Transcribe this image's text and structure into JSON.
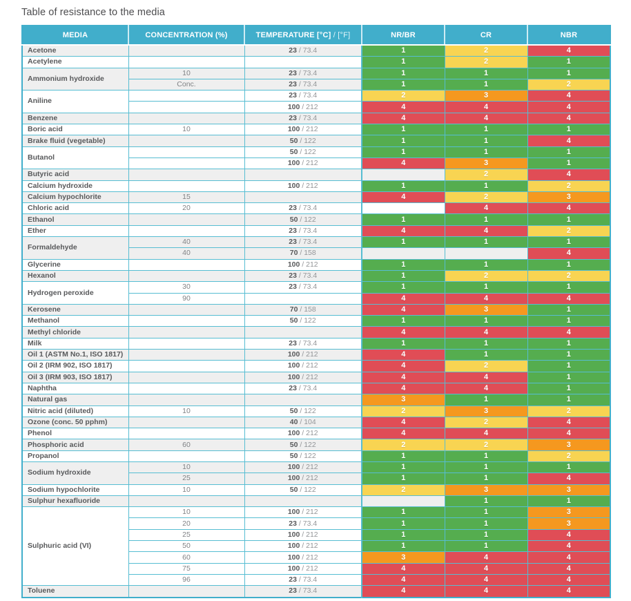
{
  "title": "Table of resistance to the media",
  "colors": {
    "header": "#41aecb",
    "border": "#56bdd2",
    "stripe": "#efefef",
    "ratings": {
      "1": "#55ad4f",
      "2": "#f8d452",
      "3": "#f5981f",
      "4": "#e04d56"
    }
  },
  "table": {
    "headers": {
      "media": "MEDIA",
      "concentration": "CONCENTRATION (%)",
      "temperature_bold": "TEMPERATURE [°C]",
      "temperature_light": "/ [°F]",
      "nr_br": "NR/BR",
      "cr": "CR",
      "nbr": "NBR"
    },
    "groups": [
      {
        "media": "Acetone",
        "rows": [
          {
            "concentration": "",
            "temp_c": "23",
            "temp_f": "73.4",
            "ratings": [
              1,
              2,
              4
            ]
          }
        ]
      },
      {
        "media": "Acetylene",
        "rows": [
          {
            "concentration": "",
            "temp_c": "",
            "temp_f": "",
            "ratings": [
              1,
              2,
              1
            ]
          }
        ]
      },
      {
        "media": "Ammonium hydroxide",
        "rows": [
          {
            "concentration": "10",
            "temp_c": "23",
            "temp_f": "73.4",
            "ratings": [
              1,
              1,
              1
            ]
          },
          {
            "concentration": "Conc.",
            "temp_c": "23",
            "temp_f": "73.4",
            "ratings": [
              1,
              1,
              2
            ]
          }
        ]
      },
      {
        "media": "Aniline",
        "rows": [
          {
            "concentration": "",
            "temp_c": "23",
            "temp_f": "73.4",
            "ratings": [
              2,
              3,
              4
            ]
          },
          {
            "concentration": "",
            "temp_c": "100",
            "temp_f": "212",
            "ratings": [
              4,
              4,
              4
            ]
          }
        ]
      },
      {
        "media": "Benzene",
        "rows": [
          {
            "concentration": "",
            "temp_c": "23",
            "temp_f": "73.4",
            "ratings": [
              4,
              4,
              4
            ]
          }
        ]
      },
      {
        "media": "Boric acid",
        "rows": [
          {
            "concentration": "10",
            "temp_c": "100",
            "temp_f": "212",
            "ratings": [
              1,
              1,
              1
            ]
          }
        ]
      },
      {
        "media": "Brake fluid (vegetable)",
        "rows": [
          {
            "concentration": "",
            "temp_c": "50",
            "temp_f": "122",
            "ratings": [
              1,
              1,
              4
            ]
          }
        ]
      },
      {
        "media": "Butanol",
        "rows": [
          {
            "concentration": "",
            "temp_c": "50",
            "temp_f": "122",
            "ratings": [
              1,
              1,
              1
            ]
          },
          {
            "concentration": "",
            "temp_c": "100",
            "temp_f": "212",
            "ratings": [
              4,
              3,
              1
            ]
          }
        ]
      },
      {
        "media": "Butyric acid",
        "rows": [
          {
            "concentration": "",
            "temp_c": "",
            "temp_f": "",
            "ratings": [
              null,
              2,
              4
            ]
          }
        ]
      },
      {
        "media": "Calcium hydroxide",
        "rows": [
          {
            "concentration": "",
            "temp_c": "100",
            "temp_f": "212",
            "ratings": [
              1,
              1,
              2
            ]
          }
        ]
      },
      {
        "media": "Calcium hypochlorite",
        "rows": [
          {
            "concentration": "15",
            "temp_c": "",
            "temp_f": "",
            "ratings": [
              4,
              2,
              3
            ]
          }
        ]
      },
      {
        "media": "Chloric acid",
        "rows": [
          {
            "concentration": "20",
            "temp_c": "23",
            "temp_f": "73.4",
            "ratings": [
              null,
              4,
              4
            ]
          }
        ]
      },
      {
        "media": "Ethanol",
        "rows": [
          {
            "concentration": "",
            "temp_c": "50",
            "temp_f": "122",
            "ratings": [
              1,
              1,
              1
            ]
          }
        ]
      },
      {
        "media": "Ether",
        "rows": [
          {
            "concentration": "",
            "temp_c": "23",
            "temp_f": "73.4",
            "ratings": [
              4,
              4,
              2
            ]
          }
        ]
      },
      {
        "media": "Formaldehyde",
        "rows": [
          {
            "concentration": "40",
            "temp_c": "23",
            "temp_f": "73.4",
            "ratings": [
              1,
              1,
              1
            ]
          },
          {
            "concentration": "40",
            "temp_c": "70",
            "temp_f": "158",
            "ratings": [
              null,
              null,
              4
            ]
          }
        ]
      },
      {
        "media": "Glycerine",
        "rows": [
          {
            "concentration": "",
            "temp_c": "100",
            "temp_f": "212",
            "ratings": [
              1,
              1,
              1
            ]
          }
        ]
      },
      {
        "media": "Hexanol",
        "rows": [
          {
            "concentration": "",
            "temp_c": "23",
            "temp_f": "73.4",
            "ratings": [
              1,
              2,
              2
            ]
          }
        ]
      },
      {
        "media": "Hydrogen peroxide",
        "rows": [
          {
            "concentration": "30",
            "temp_c": "23",
            "temp_f": "73.4",
            "ratings": [
              1,
              1,
              1
            ]
          },
          {
            "concentration": "90",
            "temp_c": "",
            "temp_f": "",
            "ratings": [
              4,
              4,
              4
            ]
          }
        ]
      },
      {
        "media": "Kerosene",
        "rows": [
          {
            "concentration": "",
            "temp_c": "70",
            "temp_f": "158",
            "ratings": [
              4,
              3,
              1
            ]
          }
        ]
      },
      {
        "media": "Methanol",
        "rows": [
          {
            "concentration": "",
            "temp_c": "50",
            "temp_f": "122",
            "ratings": [
              1,
              1,
              1
            ]
          }
        ]
      },
      {
        "media": "Methyl chloride",
        "rows": [
          {
            "concentration": "",
            "temp_c": "",
            "temp_f": "",
            "ratings": [
              4,
              4,
              4
            ]
          }
        ]
      },
      {
        "media": "Milk",
        "rows": [
          {
            "concentration": "",
            "temp_c": "23",
            "temp_f": "73.4",
            "ratings": [
              1,
              1,
              1
            ]
          }
        ]
      },
      {
        "media": "Oil 1 (ASTM No.1, ISO 1817)",
        "rows": [
          {
            "concentration": "",
            "temp_c": "100",
            "temp_f": "212",
            "ratings": [
              4,
              1,
              1
            ]
          }
        ]
      },
      {
        "media": "Oil 2 (IRM 902, ISO 1817)",
        "rows": [
          {
            "concentration": "",
            "temp_c": "100",
            "temp_f": "212",
            "ratings": [
              4,
              2,
              1
            ]
          }
        ]
      },
      {
        "media": "Oil 3 (IRM 903, ISO 1817)",
        "rows": [
          {
            "concentration": "",
            "temp_c": "100",
            "temp_f": "212",
            "ratings": [
              4,
              4,
              1
            ]
          }
        ]
      },
      {
        "media": "Naphtha",
        "rows": [
          {
            "concentration": "",
            "temp_c": "23",
            "temp_f": "73.4",
            "ratings": [
              4,
              4,
              1
            ]
          }
        ]
      },
      {
        "media": "Natural gas",
        "rows": [
          {
            "concentration": "",
            "temp_c": "",
            "temp_f": "",
            "ratings": [
              3,
              1,
              1
            ]
          }
        ]
      },
      {
        "media": "Nitric acid (diluted)",
        "rows": [
          {
            "concentration": "10",
            "temp_c": "50",
            "temp_f": "122",
            "ratings": [
              2,
              3,
              2
            ]
          }
        ]
      },
      {
        "media": "Ozone (conc. 50 pphm)",
        "rows": [
          {
            "concentration": "",
            "temp_c": "40",
            "temp_f": "104",
            "ratings": [
              4,
              2,
              4
            ]
          }
        ]
      },
      {
        "media": "Phenol",
        "rows": [
          {
            "concentration": "",
            "temp_c": "100",
            "temp_f": "212",
            "ratings": [
              4,
              4,
              4
            ]
          }
        ]
      },
      {
        "media": "Phosphoric acid",
        "rows": [
          {
            "concentration": "60",
            "temp_c": "50",
            "temp_f": "122",
            "ratings": [
              2,
              2,
              3
            ]
          }
        ]
      },
      {
        "media": "Propanol",
        "rows": [
          {
            "concentration": "",
            "temp_c": "50",
            "temp_f": "122",
            "ratings": [
              1,
              1,
              2
            ]
          }
        ]
      },
      {
        "media": "Sodium hydroxide",
        "rows": [
          {
            "concentration": "10",
            "temp_c": "100",
            "temp_f": "212",
            "ratings": [
              1,
              1,
              1
            ]
          },
          {
            "concentration": "25",
            "temp_c": "100",
            "temp_f": "212",
            "ratings": [
              1,
              1,
              4
            ]
          }
        ]
      },
      {
        "media": "Sodium hypochlorite",
        "rows": [
          {
            "concentration": "10",
            "temp_c": "50",
            "temp_f": "122",
            "ratings": [
              2,
              3,
              3
            ]
          }
        ]
      },
      {
        "media": "Sulphur hexafluoride",
        "rows": [
          {
            "concentration": "",
            "temp_c": "",
            "temp_f": "",
            "ratings": [
              null,
              1,
              1
            ]
          }
        ]
      },
      {
        "media": "Sulphuric acid (VI)",
        "rows": [
          {
            "concentration": "10",
            "temp_c": "100",
            "temp_f": "212",
            "ratings": [
              1,
              1,
              3
            ]
          },
          {
            "concentration": "20",
            "temp_c": "23",
            "temp_f": "73.4",
            "ratings": [
              1,
              1,
              3
            ]
          },
          {
            "concentration": "25",
            "temp_c": "100",
            "temp_f": "212",
            "ratings": [
              1,
              1,
              4
            ]
          },
          {
            "concentration": "50",
            "temp_c": "100",
            "temp_f": "212",
            "ratings": [
              1,
              1,
              4
            ]
          },
          {
            "concentration": "60",
            "temp_c": "100",
            "temp_f": "212",
            "ratings": [
              3,
              4,
              4
            ]
          },
          {
            "concentration": "75",
            "temp_c": "100",
            "temp_f": "212",
            "ratings": [
              4,
              4,
              4
            ]
          },
          {
            "concentration": "96",
            "temp_c": "23",
            "temp_f": "73.4",
            "ratings": [
              4,
              4,
              4
            ]
          }
        ]
      },
      {
        "media": "Toluene",
        "rows": [
          {
            "concentration": "",
            "temp_c": "23",
            "temp_f": "73.4",
            "ratings": [
              4,
              4,
              4
            ]
          }
        ]
      }
    ]
  }
}
